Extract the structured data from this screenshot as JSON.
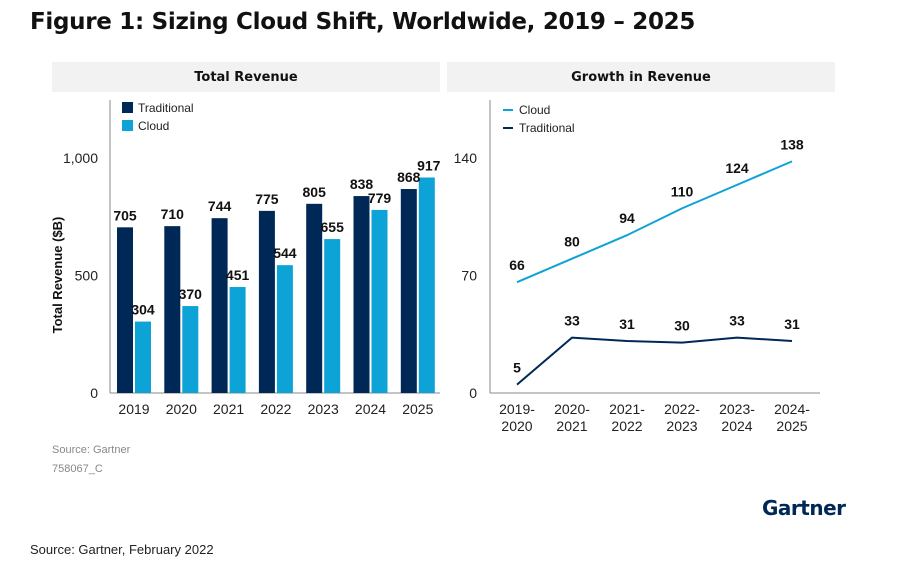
{
  "title": "Figure 1: Sizing Cloud Shift, Worldwide, 2019 – 2025",
  "source_note": "Source: Gartner",
  "figure_id": "758067_C",
  "footer": "Source: Gartner, February 2022",
  "logo": "Gartner",
  "colors": {
    "traditional": "#002856",
    "cloud": "#0ea3d6",
    "header_bg": "#f2f2f2"
  },
  "chart_data": [
    {
      "type": "bar",
      "title": "Total Revenue",
      "ylabel": "Total Revenue ($B)",
      "xlabel": "",
      "categories": [
        "2019",
        "2020",
        "2021",
        "2022",
        "2023",
        "2024",
        "2025"
      ],
      "ylim": [
        0,
        1250
      ],
      "yticks": [
        0,
        500,
        1000
      ],
      "ytick_labels": [
        "0",
        "500",
        "1,000"
      ],
      "legend": "top-left",
      "grid": false,
      "series": [
        {
          "name": "Traditional",
          "values": [
            705,
            710,
            744,
            775,
            805,
            838,
            868
          ]
        },
        {
          "name": "Cloud",
          "values": [
            304,
            370,
            451,
            544,
            655,
            779,
            917
          ]
        }
      ]
    },
    {
      "type": "line",
      "title": "Growth in Revenue",
      "xlabel": "",
      "ylabel": "",
      "categories": [
        "2019-2020",
        "2020-2021",
        "2021-2022",
        "2022-2023",
        "2023-2024",
        "2024-2025"
      ],
      "ylim": [
        0,
        175
      ],
      "yticks": [
        0,
        70,
        140
      ],
      "legend": "top-left",
      "grid": false,
      "series": [
        {
          "name": "Cloud",
          "values": [
            66,
            80,
            94,
            110,
            124,
            138
          ]
        },
        {
          "name": "Traditional",
          "values": [
            5,
            33,
            31,
            30,
            33,
            31
          ]
        }
      ]
    }
  ]
}
